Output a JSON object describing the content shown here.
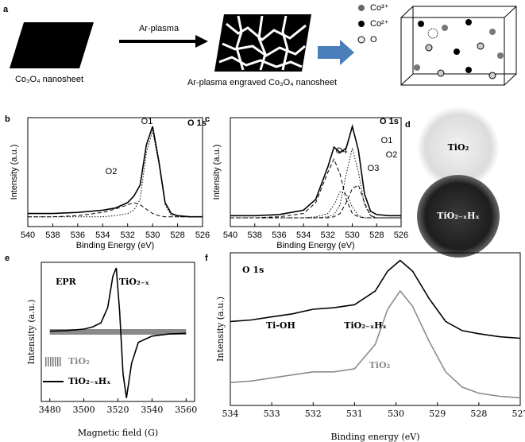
{
  "panel_labels": [
    "a",
    "b",
    "c",
    "d",
    "e",
    "f"
  ],
  "schematic": {
    "arrow_label": "Ar-plasma",
    "start_label": "Co₃O₄  nanosheet",
    "end_label": "Ar-plasma engraved Co₃O₄ nanosheet",
    "legend": [
      "Co³⁺",
      "Co²⁺",
      "O"
    ]
  },
  "photos": {
    "labels": [
      "TiO₂",
      "TiO₂₋ₓHₓ"
    ]
  },
  "chart_data": [
    {
      "type": "line",
      "annotations": [
        "O 1s"
      ],
      "x_label": "Binding Energy (eV)",
      "y_label": "Intensity (a.u.)",
      "x": [
        540,
        538,
        536,
        534,
        533,
        532,
        531.5,
        531,
        530.5,
        530,
        529.5,
        529,
        528.5,
        528,
        527,
        526
      ],
      "xlim": [
        540,
        526
      ],
      "xticks": [
        540,
        538,
        536,
        534,
        532,
        530,
        528,
        526
      ],
      "ylim": [
        0,
        100
      ],
      "series": [
        {
          "color": "#000000",
          "style": "solid",
          "values": [
            12,
            12,
            13,
            15,
            17,
            22,
            28,
            38,
            75,
            92,
            60,
            22,
            12,
            10,
            9,
            9
          ]
        },
        {
          "name": "O1",
          "color": "#000000",
          "style": "dotted",
          "values": [
            9,
            9,
            9,
            9,
            10,
            12,
            15,
            25,
            68,
            88,
            58,
            20,
            10,
            9,
            9,
            9
          ]
        },
        {
          "name": "O2",
          "color": "#000000",
          "style": "dashed",
          "values": [
            9,
            9,
            10,
            13,
            16,
            20,
            22,
            20,
            16,
            12,
            10,
            9,
            9,
            9,
            9,
            9
          ]
        }
      ]
    },
    {
      "type": "line",
      "annotations": [
        "O 1s"
      ],
      "x_label": "Binding Energy (eV)",
      "y_label": "Intensity (a.u.)",
      "x": [
        540,
        538,
        536,
        534,
        533,
        532,
        531.5,
        531,
        530.5,
        530,
        529.5,
        529,
        528.5,
        528,
        527,
        526
      ],
      "xlim": [
        540,
        526
      ],
      "xticks": [
        540,
        538,
        536,
        534,
        532,
        530,
        528,
        526
      ],
      "ylim": [
        0,
        100
      ],
      "series": [
        {
          "color": "#000000",
          "style": "solid",
          "values": [
            10,
            10,
            11,
            15,
            25,
            55,
            73,
            68,
            72,
            92,
            70,
            30,
            14,
            11,
            10,
            10
          ]
        },
        {
          "name": "O4",
          "color": "#000000",
          "style": "dashed",
          "values": [
            8,
            8,
            9,
            12,
            22,
            50,
            62,
            48,
            25,
            12,
            9,
            8,
            8,
            8,
            8,
            8
          ]
        },
        {
          "name": "O3",
          "color": "#000000",
          "style": "dotted",
          "values": [
            8,
            8,
            8,
            8,
            9,
            12,
            20,
            32,
            30,
            18,
            10,
            8,
            8,
            8,
            8,
            8
          ]
        },
        {
          "name": "O1",
          "color": "#000000",
          "style": "dotted",
          "values": [
            8,
            8,
            8,
            8,
            8,
            9,
            11,
            20,
            48,
            72,
            50,
            20,
            10,
            8,
            8,
            8
          ]
        },
        {
          "name": "O2",
          "color": "#000000",
          "style": "dashed",
          "values": [
            8,
            8,
            8,
            8,
            8,
            8,
            9,
            12,
            22,
            35,
            38,
            22,
            10,
            8,
            8,
            8
          ]
        }
      ]
    },
    {
      "type": "line",
      "annotations": [
        "EPR",
        "TiO₂₋ₓ"
      ],
      "x_label": "Magnetic field (G)",
      "y_label": "Intensity (a.u.)",
      "x": [
        3480,
        3490,
        3500,
        3505,
        3510,
        3514,
        3517,
        3519,
        3521,
        3523,
        3525,
        3528,
        3532,
        3540,
        3550,
        3560
      ],
      "xlim": [
        3475,
        3565
      ],
      "xticks": [
        3480,
        3500,
        3520,
        3540,
        3560
      ],
      "ylim": [
        -100,
        100
      ],
      "legend": "lower left",
      "series": [
        {
          "name": "TiO₂",
          "color": "#8a8a8a",
          "style": "thick",
          "values": [
            0,
            0,
            0,
            0,
            0,
            0,
            0,
            0,
            0,
            0,
            0,
            0,
            0,
            0,
            0,
            0
          ]
        },
        {
          "name": "TiO₂₋ₓHₓ",
          "color": "#000000",
          "style": "solid",
          "values": [
            1,
            2,
            4,
            7,
            13,
            35,
            80,
            92,
            30,
            -60,
            -95,
            -45,
            -15,
            -6,
            -3,
            -2
          ]
        }
      ]
    },
    {
      "type": "line",
      "annotations": [
        "O 1s",
        "Ti-OH"
      ],
      "x_label": "Binding energy (eV)",
      "y_label": "Intensity (a.u.)",
      "x": [
        534,
        533.5,
        533,
        532.5,
        532,
        531.5,
        531,
        530.5,
        530.2,
        529.9,
        529.6,
        529.2,
        528.8,
        528.4,
        528,
        527.5,
        527
      ],
      "xlim": [
        534,
        527
      ],
      "xticks": [
        534,
        533,
        532,
        531,
        530,
        529,
        528,
        527
      ],
      "ylim": [
        0,
        100
      ],
      "series": [
        {
          "name": "TiO₂₋ₓHₓ",
          "color": "#000000",
          "style": "solid",
          "values": [
            55,
            56,
            58,
            60,
            63,
            64,
            66,
            75,
            88,
            95,
            88,
            70,
            55,
            49,
            47,
            45,
            44
          ]
        },
        {
          "name": "TiO₂",
          "color": "#8c8c8c",
          "style": "solid",
          "values": [
            15,
            16,
            18,
            20,
            22,
            22,
            24,
            40,
            63,
            75,
            65,
            42,
            22,
            12,
            8,
            6,
            5
          ]
        }
      ]
    }
  ]
}
